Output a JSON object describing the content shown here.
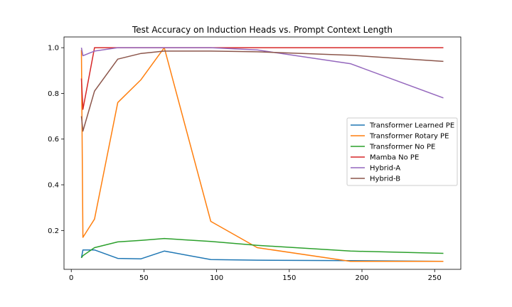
{
  "chart_data": {
    "type": "line",
    "title": "Test Accuracy on Induction Heads vs. Prompt Context Length",
    "xlabel": "",
    "ylabel": "",
    "xlim": [
      -5,
      268
    ],
    "ylim": [
      0.03,
      1.047
    ],
    "xticks": [
      0,
      50,
      100,
      150,
      200,
      250
    ],
    "yticks": [
      0.2,
      0.4,
      0.6,
      0.8,
      1.0
    ],
    "xtick_labels": [
      "0",
      "50",
      "100",
      "150",
      "200",
      "250"
    ],
    "ytick_labels": [
      "0.2",
      "0.4",
      "0.6",
      "0.8",
      "1.0"
    ],
    "grid": false,
    "legend_position": "center-right",
    "series": [
      {
        "name": "Transformer Learned PE",
        "color": "#1f77b4",
        "x": [
          7,
          8,
          16,
          32,
          48,
          64,
          96,
          128,
          192,
          256
        ],
        "y": [
          0.08,
          0.115,
          0.115,
          0.078,
          0.076,
          0.11,
          0.073,
          0.07,
          0.068,
          0.065
        ]
      },
      {
        "name": "Transformer Rotary PE",
        "color": "#ff7f0e",
        "x": [
          7,
          8,
          16,
          32,
          48,
          64,
          96,
          128,
          192,
          256
        ],
        "y": [
          0.99,
          0.17,
          0.25,
          0.76,
          0.86,
          1.0,
          0.24,
          0.125,
          0.065,
          0.065
        ]
      },
      {
        "name": "Transformer No PE",
        "color": "#2ca02c",
        "x": [
          7,
          8,
          16,
          32,
          48,
          64,
          96,
          128,
          192,
          256
        ],
        "y": [
          0.08,
          0.09,
          0.125,
          0.15,
          0.157,
          0.165,
          0.152,
          0.135,
          0.11,
          0.1
        ]
      },
      {
        "name": "Mamba No PE",
        "color": "#d62728",
        "x": [
          7,
          8,
          16,
          32,
          48,
          64,
          96,
          128,
          192,
          256
        ],
        "y": [
          0.865,
          0.73,
          1.0,
          1.0,
          1.0,
          1.0,
          1.0,
          1.0,
          1.0,
          1.0
        ]
      },
      {
        "name": "Hybrid-A",
        "color": "#9467bd",
        "x": [
          7,
          8,
          16,
          32,
          48,
          64,
          96,
          128,
          192,
          256
        ],
        "y": [
          1.0,
          0.965,
          0.985,
          1.0,
          1.0,
          1.0,
          1.0,
          0.99,
          0.93,
          0.78
        ]
      },
      {
        "name": "Hybrid-B",
        "color": "#8c564b",
        "x": [
          7,
          8,
          16,
          32,
          48,
          64,
          96,
          128,
          192,
          256
        ],
        "y": [
          0.7,
          0.635,
          0.81,
          0.95,
          0.975,
          0.985,
          0.985,
          0.982,
          0.967,
          0.94
        ]
      }
    ]
  }
}
